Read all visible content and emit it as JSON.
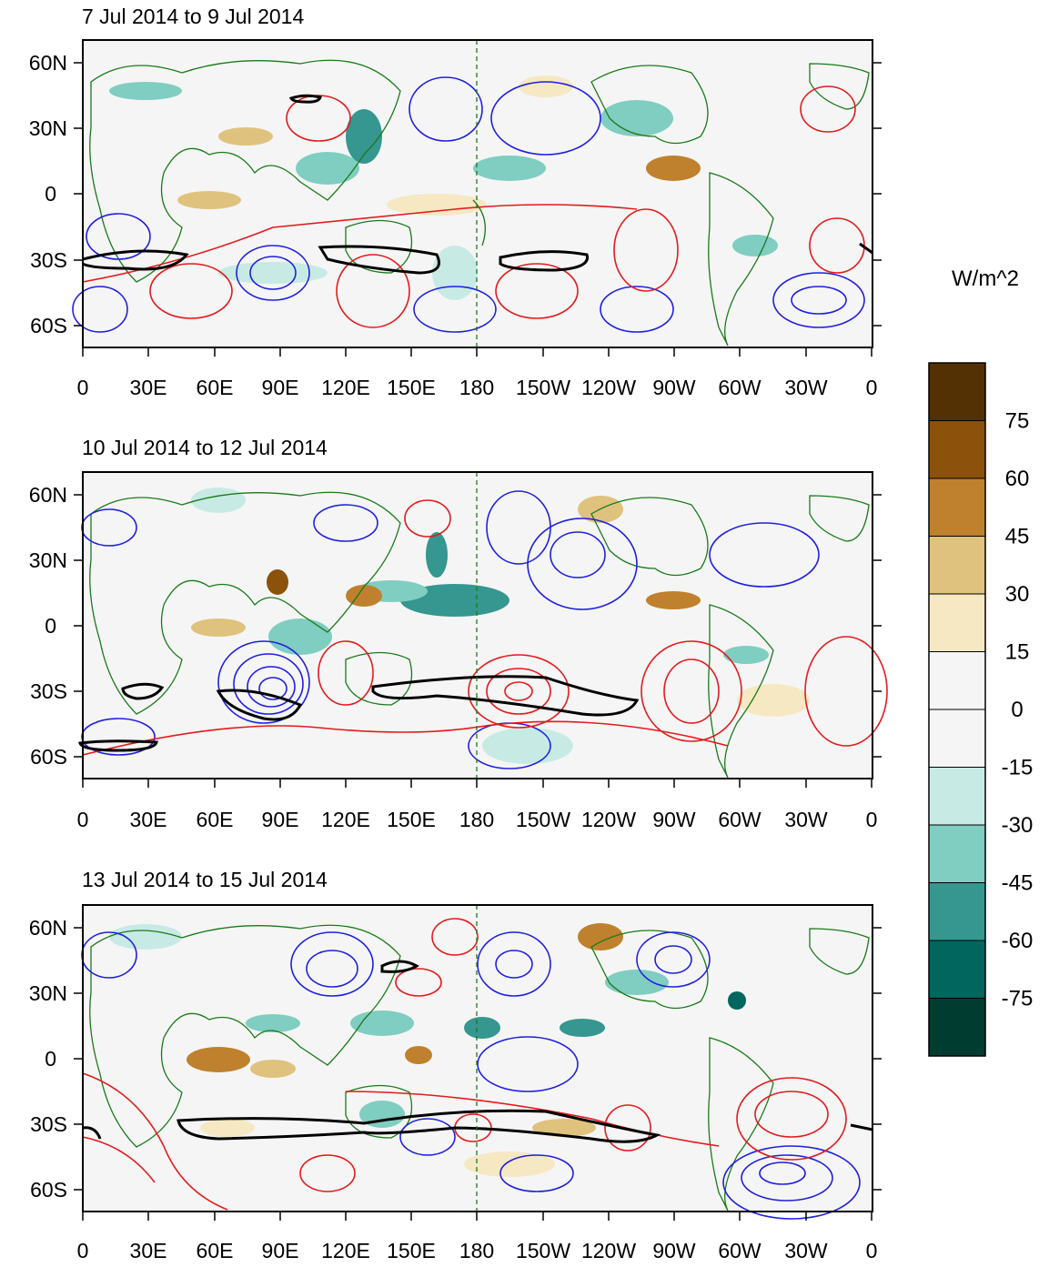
{
  "colorbar": {
    "units": "W/m^2",
    "ticks": [
      "75",
      "60",
      "45",
      "30",
      "15",
      "0",
      "-15",
      "-30",
      "-45",
      "-60",
      "-75"
    ],
    "colors": [
      "#543005",
      "#8c510a",
      "#bf812d",
      "#dfc27d",
      "#f6e8c3",
      "#f5f5f5",
      "#f5f5f5",
      "#c7eae5",
      "#80cdc1",
      "#35978f",
      "#01665e",
      "#003c30"
    ]
  },
  "axes": {
    "lon_labels": [
      "0",
      "30E",
      "60E",
      "90E",
      "120E",
      "150E",
      "180",
      "150W",
      "120W",
      "90W",
      "60W",
      "30W",
      "0"
    ],
    "lat_labels": [
      "60N",
      "30N",
      "0",
      "30S",
      "60S"
    ]
  },
  "panels": [
    {
      "title": "7 Jul 2014 to 9 Jul 2014"
    },
    {
      "title": "10 Jul 2014 to 12 Jul 2014"
    },
    {
      "title": "13 Jul 2014 to 15 Jul 2014"
    }
  ],
  "contour_colors": {
    "positive": "#e31a1c",
    "negative": "#1f1fe0",
    "highlight": "#000000",
    "coast": "#1a7a1a"
  }
}
